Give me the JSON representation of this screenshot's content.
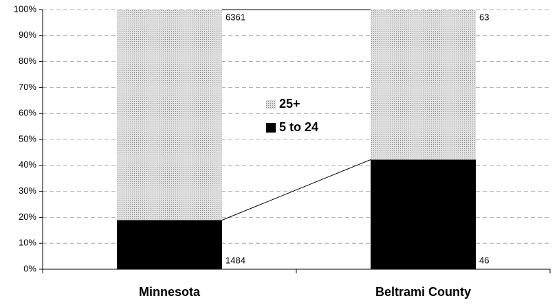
{
  "chart_data": {
    "type": "bar",
    "stacked": true,
    "normalize": "percent",
    "categories": [
      "Minnesota",
      "Beltrami County"
    ],
    "series": [
      {
        "name": "5 to 24",
        "color": "#000000",
        "values": [
          1484,
          46
        ]
      },
      {
        "name": "25+",
        "color": "#c4c4c4",
        "values": [
          6361,
          63
        ]
      }
    ],
    "ylim": [
      0,
      100
    ],
    "yticks": [
      {
        "value": 0,
        "label": "0%"
      },
      {
        "value": 10,
        "label": "10%"
      },
      {
        "value": 20,
        "label": "20%"
      },
      {
        "value": 30,
        "label": "30%"
      },
      {
        "value": 40,
        "label": "40%"
      },
      {
        "value": 50,
        "label": "50%"
      },
      {
        "value": 60,
        "label": "60%"
      },
      {
        "value": 70,
        "label": "70%"
      },
      {
        "value": 80,
        "label": "80%"
      },
      {
        "value": 90,
        "label": "90%"
      },
      {
        "value": 100,
        "label": "100%"
      }
    ],
    "grid": true,
    "legend": "center",
    "series_lines": true
  }
}
